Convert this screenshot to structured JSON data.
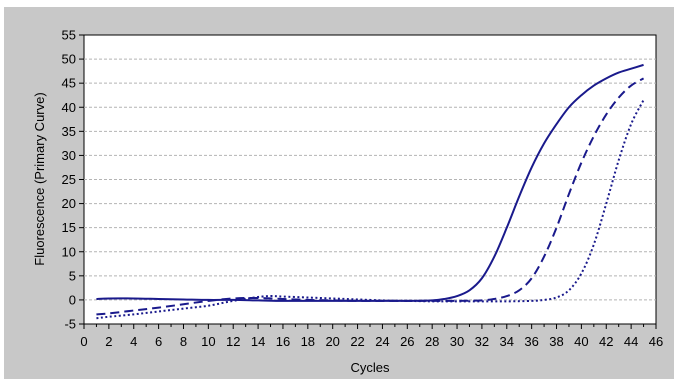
{
  "chart_data": {
    "type": "line",
    "title": "",
    "xlabel": "Cycles",
    "ylabel": "Fluorescence (Primary Curve)",
    "xlim": [
      0,
      46
    ],
    "ylim": [
      -5,
      55
    ],
    "xticks": [
      0,
      2,
      4,
      6,
      8,
      10,
      12,
      14,
      16,
      18,
      20,
      22,
      24,
      26,
      28,
      30,
      32,
      34,
      36,
      38,
      40,
      42,
      44,
      46
    ],
    "yticks": [
      -5,
      0,
      5,
      10,
      15,
      20,
      25,
      30,
      35,
      40,
      45,
      50,
      55
    ],
    "grid": "horizontal-dashed",
    "legend": "none",
    "colors": {
      "series": "#1a1a8c",
      "plot_background": "#ffffff",
      "frame_background": "#c8c8c8",
      "grid": "#b4b4b4"
    },
    "series": [
      {
        "style": "solid",
        "x": [
          1,
          2,
          4,
          6,
          8,
          10,
          12,
          14,
          16,
          18,
          20,
          22,
          24,
          26,
          28,
          29,
          30,
          31,
          32,
          33,
          34,
          35,
          36,
          37,
          38,
          39,
          40,
          41,
          42,
          43,
          44,
          45
        ],
        "y": [
          0.2,
          0.3,
          0.3,
          0.2,
          0.1,
          0.0,
          0.0,
          -0.1,
          -0.2,
          -0.2,
          -0.2,
          -0.2,
          -0.2,
          -0.2,
          -0.1,
          0.2,
          0.8,
          2.0,
          4.5,
          9.0,
          15.0,
          21.5,
          27.5,
          32.5,
          36.5,
          40.0,
          42.5,
          44.5,
          46.0,
          47.2,
          48.0,
          48.8
        ]
      },
      {
        "style": "dashed",
        "x": [
          1,
          2,
          4,
          6,
          8,
          10,
          12,
          14,
          16,
          18,
          20,
          22,
          24,
          26,
          28,
          30,
          32,
          33,
          34,
          35,
          36,
          37,
          38,
          39,
          40,
          41,
          42,
          43,
          44,
          45
        ],
        "y": [
          -3.0,
          -2.8,
          -2.2,
          -1.6,
          -0.9,
          -0.2,
          0.3,
          0.4,
          0.2,
          0.0,
          -0.1,
          -0.2,
          -0.2,
          -0.2,
          -0.2,
          -0.2,
          -0.1,
          0.2,
          0.8,
          2.0,
          4.5,
          9.0,
          15.0,
          22.0,
          28.5,
          34.0,
          38.5,
          42.0,
          44.5,
          46.0
        ]
      },
      {
        "style": "dotted",
        "x": [
          1,
          2,
          4,
          6,
          8,
          10,
          12,
          14,
          15,
          16,
          18,
          20,
          22,
          24,
          26,
          28,
          30,
          32,
          34,
          36,
          37,
          38,
          39,
          40,
          41,
          42,
          43,
          44,
          45
        ],
        "y": [
          -3.8,
          -3.5,
          -3.0,
          -2.4,
          -1.8,
          -1.2,
          -0.2,
          0.6,
          0.8,
          0.7,
          0.5,
          0.3,
          0.1,
          -0.1,
          -0.2,
          -0.3,
          -0.3,
          -0.3,
          -0.3,
          -0.2,
          0.0,
          0.5,
          2.0,
          5.5,
          11.5,
          20.0,
          29.0,
          36.5,
          41.5
        ]
      }
    ]
  }
}
